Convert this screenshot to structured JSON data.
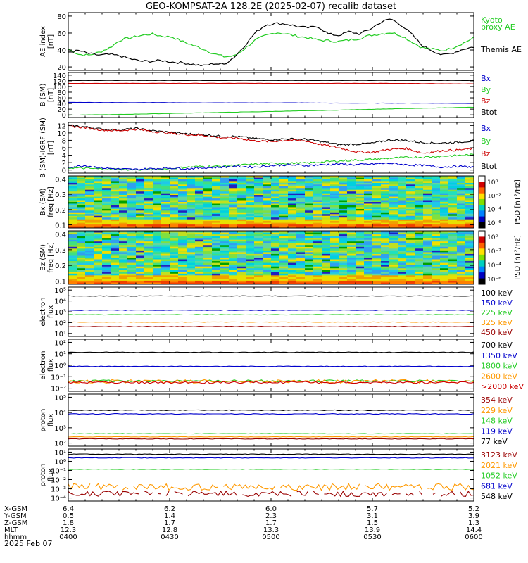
{
  "title": "GEO-KOMPSAT-2A 128.2E (2025-02-07) recalib dataset",
  "panels": [
    {
      "id": "ae",
      "ylabel": [
        "AE index",
        "[nT]"
      ],
      "yticks": [
        "20",
        "40",
        "60",
        "80"
      ],
      "legend": [
        {
          "text": "Kyoto",
          "color": "#22cc22"
        },
        {
          "text": "proxy AE",
          "color": "#22cc22"
        },
        {
          "text": "Themis AE",
          "color": "#000000"
        }
      ]
    },
    {
      "id": "bsm",
      "ylabel": [
        "B (SM)",
        "[nT]"
      ],
      "yticks": [
        "0",
        "20",
        "40",
        "60",
        "80",
        "100",
        "120",
        "140"
      ],
      "legend": [
        {
          "text": "Bx",
          "color": "#0000cc"
        },
        {
          "text": "By",
          "color": "#22cc22"
        },
        {
          "text": "Bz",
          "color": "#cc0000"
        },
        {
          "text": "Btot",
          "color": "#000000"
        }
      ]
    },
    {
      "id": "bigrf",
      "ylabel": [
        "B (SM)-IGRF (SM)",
        "[nT]"
      ],
      "yticks": [
        "0",
        "2",
        "4",
        "6",
        "8",
        "10",
        "12"
      ],
      "legend": [
        {
          "text": "Bx",
          "color": "#0000cc"
        },
        {
          "text": "By",
          "color": "#22cc22"
        },
        {
          "text": "Bz",
          "color": "#cc0000"
        },
        {
          "text": "Btot",
          "color": "#000000"
        }
      ]
    },
    {
      "id": "bxspec",
      "ylabel": [
        "Bx (SM)",
        "freq [Hz]"
      ],
      "yticks": [
        "0.1",
        "0.2",
        "0.3",
        "0.4"
      ],
      "colorbar": {
        "label": "PSD [nT²/Hz]",
        "ticks": [
          "10⁰",
          "10⁻²",
          "10⁻⁴",
          "10⁻⁶"
        ]
      }
    },
    {
      "id": "bzspec",
      "ylabel": [
        "Bz (SM)",
        "freq [Hz]"
      ],
      "yticks": [
        "0.1",
        "0.2",
        "0.3",
        "0.4"
      ],
      "colorbar": {
        "label": "PSD [nT²/Hz]",
        "ticks": [
          "10⁰",
          "10⁻²",
          "10⁻⁴",
          "10⁻⁶"
        ]
      }
    },
    {
      "id": "elec1",
      "ylabel": [
        "electron",
        "flux"
      ],
      "yticks": [
        "10¹",
        "10²",
        "10³",
        "10⁴",
        "10⁵"
      ],
      "legend": [
        {
          "text": "100 keV",
          "color": "#000000"
        },
        {
          "text": "150 keV",
          "color": "#0000cc"
        },
        {
          "text": "225 keV",
          "color": "#22cc22"
        },
        {
          "text": "325 keV",
          "color": "#ff9900"
        },
        {
          "text": "450 keV",
          "color": "#990000"
        }
      ]
    },
    {
      "id": "elec2",
      "ylabel": [
        "electron",
        "flux"
      ],
      "yticks": [
        "10⁻²",
        "10⁻¹",
        "10⁰",
        "10¹",
        "10²"
      ],
      "legend": [
        {
          "text": "700 keV",
          "color": "#000000"
        },
        {
          "text": "1350 keV",
          "color": "#0000cc"
        },
        {
          "text": "1800 keV",
          "color": "#22cc22"
        },
        {
          "text": "2600 keV",
          "color": "#ff9900"
        },
        {
          "text": ">2000 keV",
          "color": "#cc0000"
        }
      ]
    },
    {
      "id": "prot1",
      "ylabel": [
        "proton",
        "flux"
      ],
      "yticks": [
        "10²",
        "10³",
        "10⁴",
        "10⁵"
      ],
      "legend": [
        {
          "text": "354 keV",
          "color": "#990000"
        },
        {
          "text": "229 keV",
          "color": "#ff9900"
        },
        {
          "text": "148 keV",
          "color": "#22cc22"
        },
        {
          "text": "119 keV",
          "color": "#0000cc"
        },
        {
          "text": "77 keV",
          "color": "#000000"
        }
      ]
    },
    {
      "id": "prot2",
      "ylabel": [
        "proton",
        "flux"
      ],
      "yticks": [
        "10⁻⁴",
        "10⁻³",
        "10⁻²",
        "10⁻¹",
        "10⁰",
        "10¹"
      ],
      "legend": [
        {
          "text": "3123 keV",
          "color": "#990000"
        },
        {
          "text": "2021 keV",
          "color": "#ff9900"
        },
        {
          "text": "1052 keV",
          "color": "#22cc22"
        },
        {
          "text": "681 keV",
          "color": "#0000cc"
        },
        {
          "text": "548 keV",
          "color": "#000000"
        }
      ]
    }
  ],
  "ephemeris": {
    "rows": [
      {
        "label": "X-GSM",
        "values": [
          "6.4",
          "6.2",
          "6.0",
          "5.7",
          "5.2"
        ]
      },
      {
        "label": "Y-GSM",
        "values": [
          "0.5",
          "1.4",
          "2.3",
          "3.1",
          "3.9"
        ]
      },
      {
        "label": "Z-GSM",
        "values": [
          "1.8",
          "1.7",
          "1.7",
          "1.5",
          "1.3"
        ]
      },
      {
        "label": "MLT",
        "values": [
          "12.3",
          "12.8",
          "13.3",
          "13.9",
          "14.4"
        ]
      },
      {
        "label": "hhmm",
        "values": [
          "0400",
          "0430",
          "0500",
          "0530",
          "0600"
        ]
      }
    ],
    "date": "2025 Feb 07"
  },
  "chart_data": {
    "type": "line",
    "title": "GEO-KOMPSAT-2A 128.2E (2025-02-07) recalib dataset",
    "x_axis": {
      "label": "hhmm",
      "ticks": [
        "0400",
        "0430",
        "0500",
        "0530",
        "0600"
      ],
      "range": [
        "0400",
        "0600"
      ]
    },
    "panels": [
      {
        "name": "AE index",
        "unit": "nT",
        "ylim": [
          0,
          85
        ],
        "series": [
          {
            "name": "Kyoto proxy AE",
            "color": "#22cc22",
            "values": [
              40,
              33,
              32,
              36,
              42,
              52,
              55,
              58,
              60,
              57,
              56,
              50,
              45,
              40,
              34,
              30,
              31,
              41,
              52,
              58,
              62,
              60,
              57,
              55,
              52,
              51,
              50,
              52,
              54,
              58,
              60,
              62,
              58,
              50,
              42,
              40,
              38,
              42,
              48,
              55
            ]
          },
          {
            "name": "Themis AE",
            "color": "#000000",
            "values": [
              36,
              38,
              34,
              32,
              33,
              31,
              27,
              24,
              24,
              25,
              23,
              22,
              20,
              18,
              21,
              20,
              30,
              45,
              62,
              72,
              74,
              73,
              70,
              68,
              70,
              60,
              58,
              63,
              60,
              66,
              75,
              80,
              72,
              60,
              45,
              38,
              32,
              35,
              40,
              43
            ]
          }
        ]
      },
      {
        "name": "B (SM)",
        "unit": "nT",
        "ylim": [
          0,
          140
        ],
        "series": [
          {
            "name": "Btot",
            "color": "#000000",
            "values": [
              120,
              120,
              120,
              120,
              120,
              120,
              120,
              120,
              120,
              120
            ]
          },
          {
            "name": "Bz",
            "color": "#cc0000",
            "values": [
              110,
              110,
              110,
              110,
              110,
              110,
              110,
              110,
              109,
              108
            ]
          },
          {
            "name": "Bx",
            "color": "#0000cc",
            "values": [
              45,
              44,
              44,
              43,
              43,
              43,
              42,
              42,
              42,
              41
            ]
          },
          {
            "name": "By",
            "color": "#22cc22",
            "values": [
              1,
              3,
              6,
              9,
              12,
              15,
              18,
              22,
              25,
              28
            ]
          }
        ]
      },
      {
        "name": "B (SM)-IGRF (SM)",
        "unit": "nT",
        "ylim": [
          0,
          12
        ],
        "series": [
          {
            "name": "Btot",
            "color": "#000000",
            "values": [
              11.8,
              11.4,
              10.8,
              10.6,
              11.0,
              10.4,
              10.0,
              9.6,
              9.4,
              9.0,
              8.9,
              8.4,
              8.1,
              8.3,
              8.2,
              7.6,
              6.8,
              6.9,
              7.2,
              8.0,
              7.9,
              7.3,
              7.2,
              7.4,
              7.8
            ]
          },
          {
            "name": "Bz",
            "color": "#cc0000",
            "values": [
              11.6,
              11.2,
              10.6,
              10.4,
              10.8,
              10.2,
              9.8,
              9.4,
              9.2,
              8.6,
              8.5,
              7.8,
              7.6,
              8.0,
              7.8,
              6.8,
              6.0,
              5.0,
              4.8,
              5.6,
              5.8,
              4.6,
              5.2,
              5.4,
              5.8
            ]
          },
          {
            "name": "By",
            "color": "#22cc22",
            "values": [
              0.8,
              0.7,
              0.5,
              0.5,
              0.3,
              0.4,
              0.6,
              1.0,
              1.2,
              1.2,
              1.5,
              1.7,
              1.9,
              2.0,
              2.0,
              2.3,
              2.6,
              2.8,
              3.0,
              3.3,
              3.5,
              3.6,
              3.8,
              4.0,
              4.2
            ]
          },
          {
            "name": "Bx",
            "color": "#0000cc",
            "values": [
              1.0,
              1.4,
              0.8,
              0.5,
              0.4,
              0.6,
              0.8,
              0.6,
              0.8,
              1.0,
              1.2,
              1.0,
              1.4,
              1.6,
              1.4,
              1.6,
              1.8,
              1.6,
              1.8,
              2.0,
              1.6,
              1.4,
              1.0,
              1.2,
              1.0
            ]
          }
        ]
      },
      {
        "name": "electron flux (low energy)",
        "ylim": [
          "10¹",
          "10⁵"
        ],
        "series": [
          {
            "name": "100 keV",
            "color": "#000000",
            "value": "≈8×10³"
          },
          {
            "name": "150 keV",
            "color": "#0000cc",
            "value": "≈9×10²"
          },
          {
            "name": "225 keV",
            "color": "#22cc22",
            "value": "≈5×10²"
          },
          {
            "name": "325 keV",
            "color": "#ff9900",
            "value": "≈2×10²"
          },
          {
            "name": "450 keV",
            "color": "#990000",
            "value": "≈1×10²"
          }
        ]
      },
      {
        "name": "electron flux (high energy)",
        "ylim": [
          "10⁻²",
          "10²"
        ],
        "series": [
          {
            "name": "700 keV",
            "color": "#000000",
            "value": "≈10¹"
          },
          {
            "name": "1350 keV",
            "color": "#0000cc",
            "value": "≈1.2"
          },
          {
            "name": "1800 keV",
            "color": "#22cc22",
            "value": "≈0.08"
          },
          {
            "name": "2600 keV",
            "color": "#ff9900",
            "value": "≈0.06"
          },
          {
            "name": ">2000 keV",
            "color": "#cc0000",
            "value": "≈0.05"
          }
        ]
      },
      {
        "name": "proton flux (low energy)",
        "ylim": [
          "10²",
          "10⁵"
        ],
        "series": [
          {
            "name": "77 keV",
            "color": "#000000",
            "value": "≈2×10⁴"
          },
          {
            "name": "119 keV",
            "color": "#0000cc",
            "value": "≈10⁴"
          },
          {
            "name": "148 keV",
            "color": "#22cc22",
            "value": "≈5×10²"
          },
          {
            "name": "229 keV",
            "color": "#ff9900",
            "value": "≈2×10²"
          },
          {
            "name": "354 keV",
            "color": "#990000",
            "value": "≈1.5×10²"
          }
        ]
      },
      {
        "name": "proton flux (high energy)",
        "ylim": [
          "10⁻⁴",
          "10¹"
        ],
        "series": [
          {
            "name": "548 keV",
            "color": "#000000",
            "value": "≈10¹"
          },
          {
            "name": "681 keV",
            "color": "#0000cc",
            "value": "≈5"
          },
          {
            "name": "1052 keV",
            "color": "#22cc22",
            "value": "≈0.4"
          },
          {
            "name": "2021 keV",
            "color": "#ff9900",
            "value": "≈10⁻³"
          },
          {
            "name": "3123 keV",
            "color": "#990000",
            "value": "≈2×10⁻⁴"
          }
        ]
      }
    ]
  }
}
